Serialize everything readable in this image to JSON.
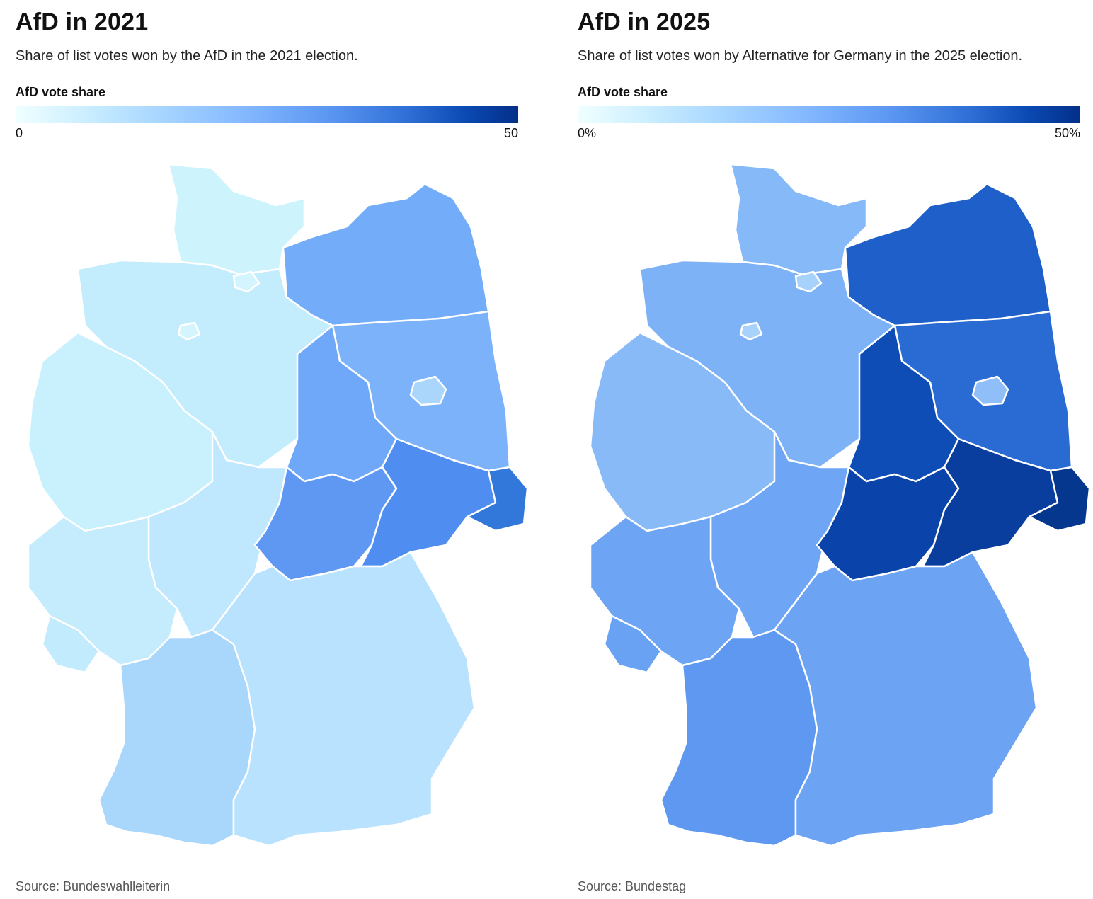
{
  "panels": [
    {
      "title": "AfD in 2021",
      "subtitle": "Share of list votes won by the AfD in the 2021 election.",
      "legend_title": "AfD vote share",
      "legend_min": "0",
      "legend_max": "50",
      "source": "Source: Bundeswahlleiterin",
      "region_colors": {
        "schleswig_holstein": "#cdf3fd",
        "lower_saxony": "#c3ecfd",
        "nrw": "#c8f1fd",
        "hesse": "#bfe8ff",
        "rhineland_palatinate": "#c4ecfd",
        "saarland": "#c2ebfd",
        "baden_wuerttemberg": "#a9d6fb",
        "bavaria": "#b8e2fe",
        "mecklenburg": "#73acf8",
        "brandenburg": "#7bb2f9",
        "saxony_anhalt": "#6fa8f8",
        "thuringia": "#5e98f3",
        "saxony": "#4f8df0",
        "saxony_east": "#3278db",
        "berlin": "#aad6fb",
        "hamburg": "#d4f5fd",
        "bremen": "#d4f5fd"
      }
    },
    {
      "title": "AfD in 2025",
      "subtitle": "Share of list votes won by Alternative for Germany in the 2025 election.",
      "legend_title": "AfD vote share",
      "legend_min": "0%",
      "legend_max": "50%",
      "source": "Source: Bundestag",
      "region_colors": {
        "schleswig_holstein": "#86b9f8",
        "lower_saxony": "#7db2f7",
        "nrw": "#88baf8",
        "hesse": "#6ea5f4",
        "rhineland_palatinate": "#6da4f3",
        "saarland": "#6aa2f3",
        "baden_wuerttemberg": "#5f98f0",
        "bavaria": "#6ca3f3",
        "mecklenburg": "#1f5fc9",
        "brandenburg": "#2a6bd3",
        "saxony_anhalt": "#0e4db6",
        "thuringia": "#0a44aa",
        "saxony": "#093e9f",
        "saxony_east": "#05378f",
        "berlin": "#8fbef8",
        "hamburg": "#a6d2fb",
        "bremen": "#a6d2fb"
      }
    }
  ]
}
